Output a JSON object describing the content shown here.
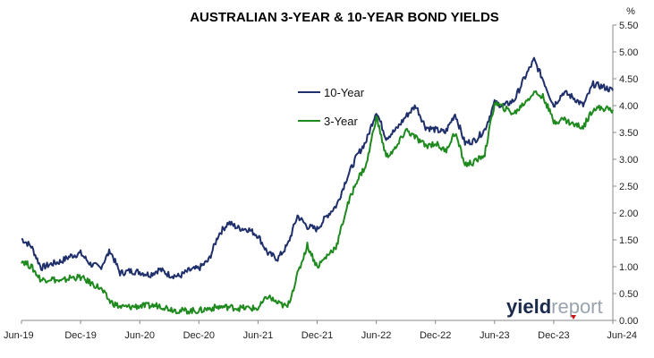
{
  "chart_data": {
    "type": "line",
    "title": "AUSTRALIAN 3-YEAR & 10-YEAR BOND YIELDS",
    "unit": "%",
    "x_ticks": [
      "Jun-19",
      "Dec-19",
      "Jun-20",
      "Dec-20",
      "Jun-21",
      "Dec-21",
      "Jun-22",
      "Dec-22",
      "Jun-23",
      "Dec-23",
      "Jun-24"
    ],
    "y_ticks": [
      "0.00",
      "0.50",
      "1.00",
      "1.50",
      "2.00",
      "2.50",
      "3.00",
      "3.50",
      "4.00",
      "4.50",
      "5.00",
      "5.50"
    ],
    "ylim": [
      0,
      5.5
    ],
    "x_range": [
      "2019-06",
      "2024-06"
    ],
    "grid": false,
    "legend_position": "center",
    "series": [
      {
        "name": "10-Year",
        "color": "#1f2f6b",
        "points": [
          [
            "2019-06",
            1.52
          ],
          [
            "2019-07",
            1.38
          ],
          [
            "2019-08",
            0.98
          ],
          [
            "2019-09",
            1.05
          ],
          [
            "2019-10",
            1.1
          ],
          [
            "2019-11",
            1.2
          ],
          [
            "2019-12",
            1.25
          ],
          [
            "2020-01",
            1.05
          ],
          [
            "2020-02",
            0.98
          ],
          [
            "2020-03",
            1.3
          ],
          [
            "2020-04",
            0.88
          ],
          [
            "2020-05",
            0.92
          ],
          [
            "2020-06",
            0.9
          ],
          [
            "2020-07",
            0.85
          ],
          [
            "2020-08",
            0.95
          ],
          [
            "2020-09",
            0.85
          ],
          [
            "2020-10",
            0.82
          ],
          [
            "2020-11",
            0.93
          ],
          [
            "2020-12",
            0.97
          ],
          [
            "2021-01",
            1.12
          ],
          [
            "2021-02",
            1.6
          ],
          [
            "2021-03",
            1.82
          ],
          [
            "2021-04",
            1.72
          ],
          [
            "2021-05",
            1.7
          ],
          [
            "2021-06",
            1.58
          ],
          [
            "2021-07",
            1.25
          ],
          [
            "2021-08",
            1.15
          ],
          [
            "2021-09",
            1.4
          ],
          [
            "2021-10",
            1.95
          ],
          [
            "2021-11",
            1.75
          ],
          [
            "2021-12",
            1.7
          ],
          [
            "2022-01",
            1.95
          ],
          [
            "2022-02",
            2.15
          ],
          [
            "2022-03",
            2.65
          ],
          [
            "2022-04",
            3.05
          ],
          [
            "2022-05",
            3.35
          ],
          [
            "2022-06",
            3.9
          ],
          [
            "2022-07",
            3.4
          ],
          [
            "2022-08",
            3.55
          ],
          [
            "2022-09",
            3.8
          ],
          [
            "2022-10",
            4.0
          ],
          [
            "2022-11",
            3.6
          ],
          [
            "2022-12",
            3.55
          ],
          [
            "2023-01",
            3.5
          ],
          [
            "2023-02",
            3.85
          ],
          [
            "2023-03",
            3.3
          ],
          [
            "2023-04",
            3.35
          ],
          [
            "2023-05",
            3.55
          ],
          [
            "2023-06",
            4.05
          ],
          [
            "2023-07",
            4.0
          ],
          [
            "2023-08",
            4.1
          ],
          [
            "2023-09",
            4.5
          ],
          [
            "2023-10",
            4.85
          ],
          [
            "2023-11",
            4.45
          ],
          [
            "2023-12",
            4.0
          ],
          [
            "2024-01",
            4.25
          ],
          [
            "2024-02",
            4.15
          ],
          [
            "2024-03",
            4.0
          ],
          [
            "2024-04",
            4.4
          ],
          [
            "2024-05",
            4.35
          ],
          [
            "2024-06",
            4.28
          ]
        ]
      },
      {
        "name": "3-Year",
        "color": "#1e8a1e",
        "points": [
          [
            "2019-06",
            1.12
          ],
          [
            "2019-07",
            1.0
          ],
          [
            "2019-08",
            0.75
          ],
          [
            "2019-09",
            0.78
          ],
          [
            "2019-10",
            0.72
          ],
          [
            "2019-11",
            0.8
          ],
          [
            "2019-12",
            0.8
          ],
          [
            "2020-01",
            0.7
          ],
          [
            "2020-02",
            0.6
          ],
          [
            "2020-03",
            0.35
          ],
          [
            "2020-04",
            0.25
          ],
          [
            "2020-05",
            0.25
          ],
          [
            "2020-06",
            0.27
          ],
          [
            "2020-07",
            0.27
          ],
          [
            "2020-08",
            0.28
          ],
          [
            "2020-09",
            0.22
          ],
          [
            "2020-10",
            0.18
          ],
          [
            "2020-11",
            0.18
          ],
          [
            "2020-12",
            0.18
          ],
          [
            "2021-01",
            0.22
          ],
          [
            "2021-02",
            0.25
          ],
          [
            "2021-03",
            0.25
          ],
          [
            "2021-04",
            0.23
          ],
          [
            "2021-05",
            0.23
          ],
          [
            "2021-06",
            0.22
          ],
          [
            "2021-07",
            0.45
          ],
          [
            "2021-08",
            0.32
          ],
          [
            "2021-09",
            0.25
          ],
          [
            "2021-10",
            0.85
          ],
          [
            "2021-11",
            1.4
          ],
          [
            "2021-12",
            1.0
          ],
          [
            "2022-01",
            1.2
          ],
          [
            "2022-02",
            1.4
          ],
          [
            "2022-03",
            2.1
          ],
          [
            "2022-04",
            2.6
          ],
          [
            "2022-05",
            2.9
          ],
          [
            "2022-06",
            3.8
          ],
          [
            "2022-07",
            3.05
          ],
          [
            "2022-08",
            3.2
          ],
          [
            "2022-09",
            3.55
          ],
          [
            "2022-10",
            3.4
          ],
          [
            "2022-11",
            3.25
          ],
          [
            "2022-12",
            3.3
          ],
          [
            "2023-01",
            3.15
          ],
          [
            "2023-02",
            3.5
          ],
          [
            "2023-03",
            2.9
          ],
          [
            "2023-04",
            2.95
          ],
          [
            "2023-05",
            3.1
          ],
          [
            "2023-06",
            4.05
          ],
          [
            "2023-07",
            3.95
          ],
          [
            "2023-08",
            3.85
          ],
          [
            "2023-09",
            4.05
          ],
          [
            "2023-10",
            4.25
          ],
          [
            "2023-11",
            4.15
          ],
          [
            "2023-12",
            3.7
          ],
          [
            "2024-01",
            3.75
          ],
          [
            "2024-02",
            3.65
          ],
          [
            "2024-03",
            3.6
          ],
          [
            "2024-04",
            3.95
          ],
          [
            "2024-05",
            3.95
          ],
          [
            "2024-06",
            3.92
          ]
        ]
      }
    ]
  },
  "branding": {
    "part1": "yield",
    "part2": "report"
  }
}
